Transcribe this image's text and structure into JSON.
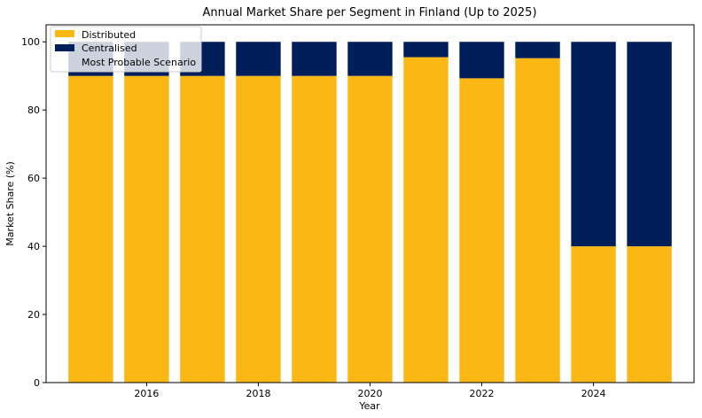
{
  "chart_data": {
    "type": "bar",
    "stacked": true,
    "title": "Annual Market Share per Segment in Finland (Up to 2025)",
    "xlabel": "Year",
    "ylabel": "Market Share (%)",
    "categories": [
      "2015",
      "2016",
      "2017",
      "2018",
      "2019",
      "2020",
      "2021",
      "2022",
      "2023",
      "2024",
      "2025"
    ],
    "x": [
      2015,
      2016,
      2017,
      2018,
      2019,
      2020,
      2021,
      2022,
      2023,
      2024,
      2025
    ],
    "series": [
      {
        "name": "Distributed",
        "color": "#fbb714",
        "values": [
          90,
          90,
          90,
          90,
          90,
          90,
          95.5,
          89.3,
          95.2,
          40,
          40
        ]
      },
      {
        "name": "Centralised",
        "color": "#001f5a",
        "values": [
          10,
          10,
          10,
          10,
          10,
          10,
          4.5,
          10.7,
          4.8,
          60,
          60
        ]
      }
    ],
    "legend_extra": "Most Probable Scenario",
    "xlim": [
      2014.2,
      2025.8
    ],
    "ylim": [
      0,
      105
    ],
    "xticks": [
      2016,
      2018,
      2020,
      2022,
      2024
    ],
    "yticks": [
      0,
      20,
      40,
      60,
      80,
      100
    ],
    "grid": false,
    "legend_position": "top-left"
  }
}
